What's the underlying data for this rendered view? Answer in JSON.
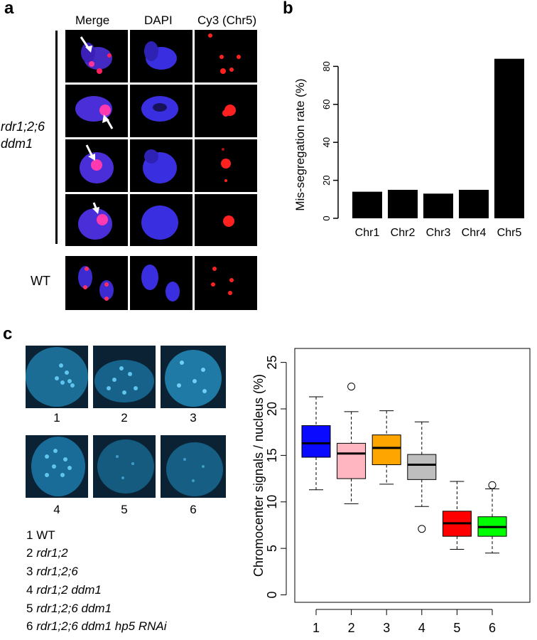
{
  "panel_a": {
    "label": "a",
    "col_titles": [
      "Merge",
      "DAPI",
      "Cy3 (Chr5)"
    ],
    "genotype_line1": "rdr1;2;6",
    "genotype_line2": "ddm1",
    "wt_label": "WT"
  },
  "panel_b": {
    "label": "b"
  },
  "panel_c": {
    "label": "c",
    "image_captions": [
      "1",
      "2",
      "3",
      "4",
      "5",
      "6"
    ],
    "legend": [
      {
        "num": "1",
        "name": "WT",
        "italic": false
      },
      {
        "num": "2",
        "name": "rdr1;2",
        "italic": true
      },
      {
        "num": "3",
        "name": "rdr1;2;6",
        "italic": true
      },
      {
        "num": "4",
        "name": "rdr1;2 ddm1",
        "italic": true
      },
      {
        "num": "5",
        "name": "rdr1;2;6 ddm1",
        "italic": true
      },
      {
        "num": "6",
        "name": "rdr1;2;6 ddm1 hp5 RNAi",
        "italic": true
      }
    ]
  },
  "chart_data": [
    {
      "type": "bar",
      "title": "",
      "xlabel": "",
      "ylabel": "Mis-segregation rate (%)",
      "categories": [
        "Chr1",
        "Chr2",
        "Chr3",
        "Chr4",
        "Chr5"
      ],
      "values": [
        14,
        15,
        13,
        15,
        84
      ],
      "ylim": [
        0,
        85
      ],
      "yticks": [
        0,
        20,
        40,
        60,
        80
      ],
      "bar_color": "#000000"
    },
    {
      "type": "box",
      "title": "",
      "xlabel": "",
      "ylabel": "Chromocenter signals / nucleus (%)",
      "categories": [
        "1",
        "2",
        "3",
        "4",
        "5",
        "6"
      ],
      "ylim": [
        0,
        25
      ],
      "yticks": [
        0,
        5,
        10,
        15,
        20,
        25
      ],
      "boxes": [
        {
          "min": 11.3,
          "q1": 14.8,
          "median": 16.3,
          "q3": 18.2,
          "max": 21.3,
          "outliers": [],
          "color": "#0a0aff"
        },
        {
          "min": 9.8,
          "q1": 12.5,
          "median": 15.2,
          "q3": 16.3,
          "max": 19.7,
          "outliers": [
            22.4
          ],
          "color": "#ffb6c1"
        },
        {
          "min": 11.9,
          "q1": 14.0,
          "median": 15.8,
          "q3": 17.2,
          "max": 19.8,
          "outliers": [],
          "color": "#ffa500"
        },
        {
          "min": 9.5,
          "q1": 12.4,
          "median": 14.0,
          "q3": 15.1,
          "max": 18.6,
          "outliers": [
            7.1
          ],
          "color": "#bebebe"
        },
        {
          "min": 4.9,
          "q1": 6.3,
          "median": 7.7,
          "q3": 9.0,
          "max": 12.2,
          "outliers": [],
          "color": "#ff0000"
        },
        {
          "min": 4.5,
          "q1": 6.3,
          "median": 7.3,
          "q3": 8.4,
          "max": 11.4,
          "outliers": [
            11.8
          ],
          "color": "#00ff00"
        }
      ]
    }
  ]
}
